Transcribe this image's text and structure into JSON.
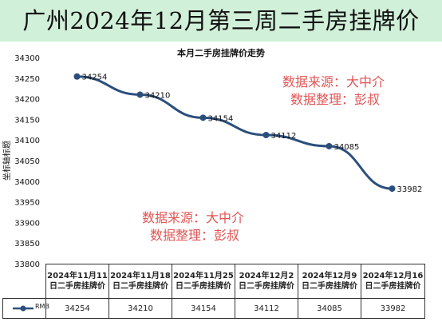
{
  "page": {
    "title": "广州2024年12月第三周二手房挂牌价"
  },
  "watermarks": [
    {
      "line1": "数据来源：大中介",
      "line2": "数据整理：彭叔"
    },
    {
      "line1": "数据来源：大中介",
      "line2": "数据整理：彭叔"
    }
  ],
  "colors": {
    "banner": "#d1f0d9",
    "series": "#2b4f7c",
    "watermark": "#e05555"
  },
  "chart_data": {
    "type": "line",
    "title": "本月二手房挂牌价走势",
    "ylabel": "坐标轴标题",
    "xlabel": "",
    "ylim": [
      33800,
      34300
    ],
    "yticks": [
      33800,
      33850,
      33900,
      33950,
      34000,
      34050,
      34100,
      34150,
      34200,
      34250,
      34300
    ],
    "categories": [
      "2024年11月11日二手房挂牌价",
      "2024年11月18日二手房挂牌价",
      "2024年11月25日二手房挂牌价",
      "2024年12月2日二手房挂牌价",
      "2024年12月9日二手房挂牌价",
      "2024年12月16日二手房挂牌价"
    ],
    "series": [
      {
        "name": "RMB",
        "values": [
          34254,
          34210,
          34154,
          34112,
          34085,
          33982
        ]
      }
    ],
    "grid": false,
    "legend": "data-table"
  }
}
